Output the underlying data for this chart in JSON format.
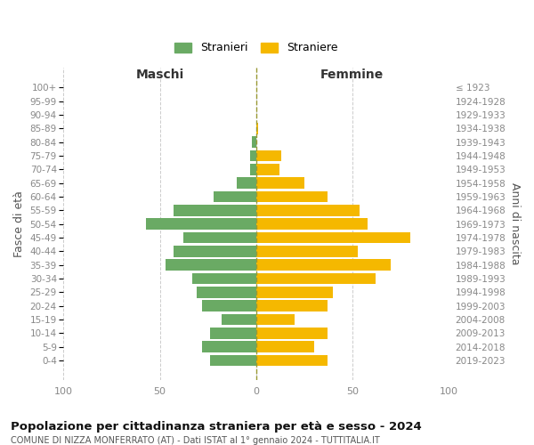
{
  "age_groups": [
    "0-4",
    "5-9",
    "10-14",
    "15-19",
    "20-24",
    "25-29",
    "30-34",
    "35-39",
    "40-44",
    "45-49",
    "50-54",
    "55-59",
    "60-64",
    "65-69",
    "70-74",
    "75-79",
    "80-84",
    "85-89",
    "90-94",
    "95-99",
    "100+"
  ],
  "birth_years": [
    "2019-2023",
    "2014-2018",
    "2009-2013",
    "2004-2008",
    "1999-2003",
    "1994-1998",
    "1989-1993",
    "1984-1988",
    "1979-1983",
    "1974-1978",
    "1969-1973",
    "1964-1968",
    "1959-1963",
    "1954-1958",
    "1949-1953",
    "1944-1948",
    "1939-1943",
    "1934-1938",
    "1929-1933",
    "1924-1928",
    "≤ 1923"
  ],
  "maschi": [
    24,
    28,
    24,
    18,
    28,
    31,
    33,
    47,
    43,
    38,
    57,
    43,
    22,
    10,
    3,
    3,
    2,
    0,
    0,
    0,
    0
  ],
  "femmine": [
    37,
    30,
    37,
    20,
    37,
    40,
    62,
    70,
    53,
    80,
    58,
    54,
    37,
    25,
    12,
    13,
    0,
    1,
    0,
    0,
    0
  ],
  "maschi_color": "#6aaa64",
  "femmine_color": "#f5b800",
  "bar_height": 0.82,
  "title": "Popolazione per cittadinanza straniera per età e sesso - 2024",
  "subtitle": "COMUNE DI NIZZA MONFERRATO (AT) - Dati ISTAT al 1° gennaio 2024 - TUTTITALIA.IT",
  "xlabel_maschi": "Maschi",
  "xlabel_femmine": "Femmine",
  "ylabel_left": "Fasce di età",
  "ylabel_right": "Anni di nascita",
  "xlim": 100,
  "legend_maschi": "Stranieri",
  "legend_femmine": "Straniere",
  "bg_color": "#ffffff",
  "grid_color": "#cccccc",
  "grid_linestyle": "--",
  "tick_color": "#888888",
  "axis_label_color": "#555555",
  "vline_color": "#999933",
  "title_fontsize": 9.5,
  "subtitle_fontsize": 7.0,
  "tick_fontsize": 7.5,
  "header_fontsize": 10,
  "legend_fontsize": 9
}
